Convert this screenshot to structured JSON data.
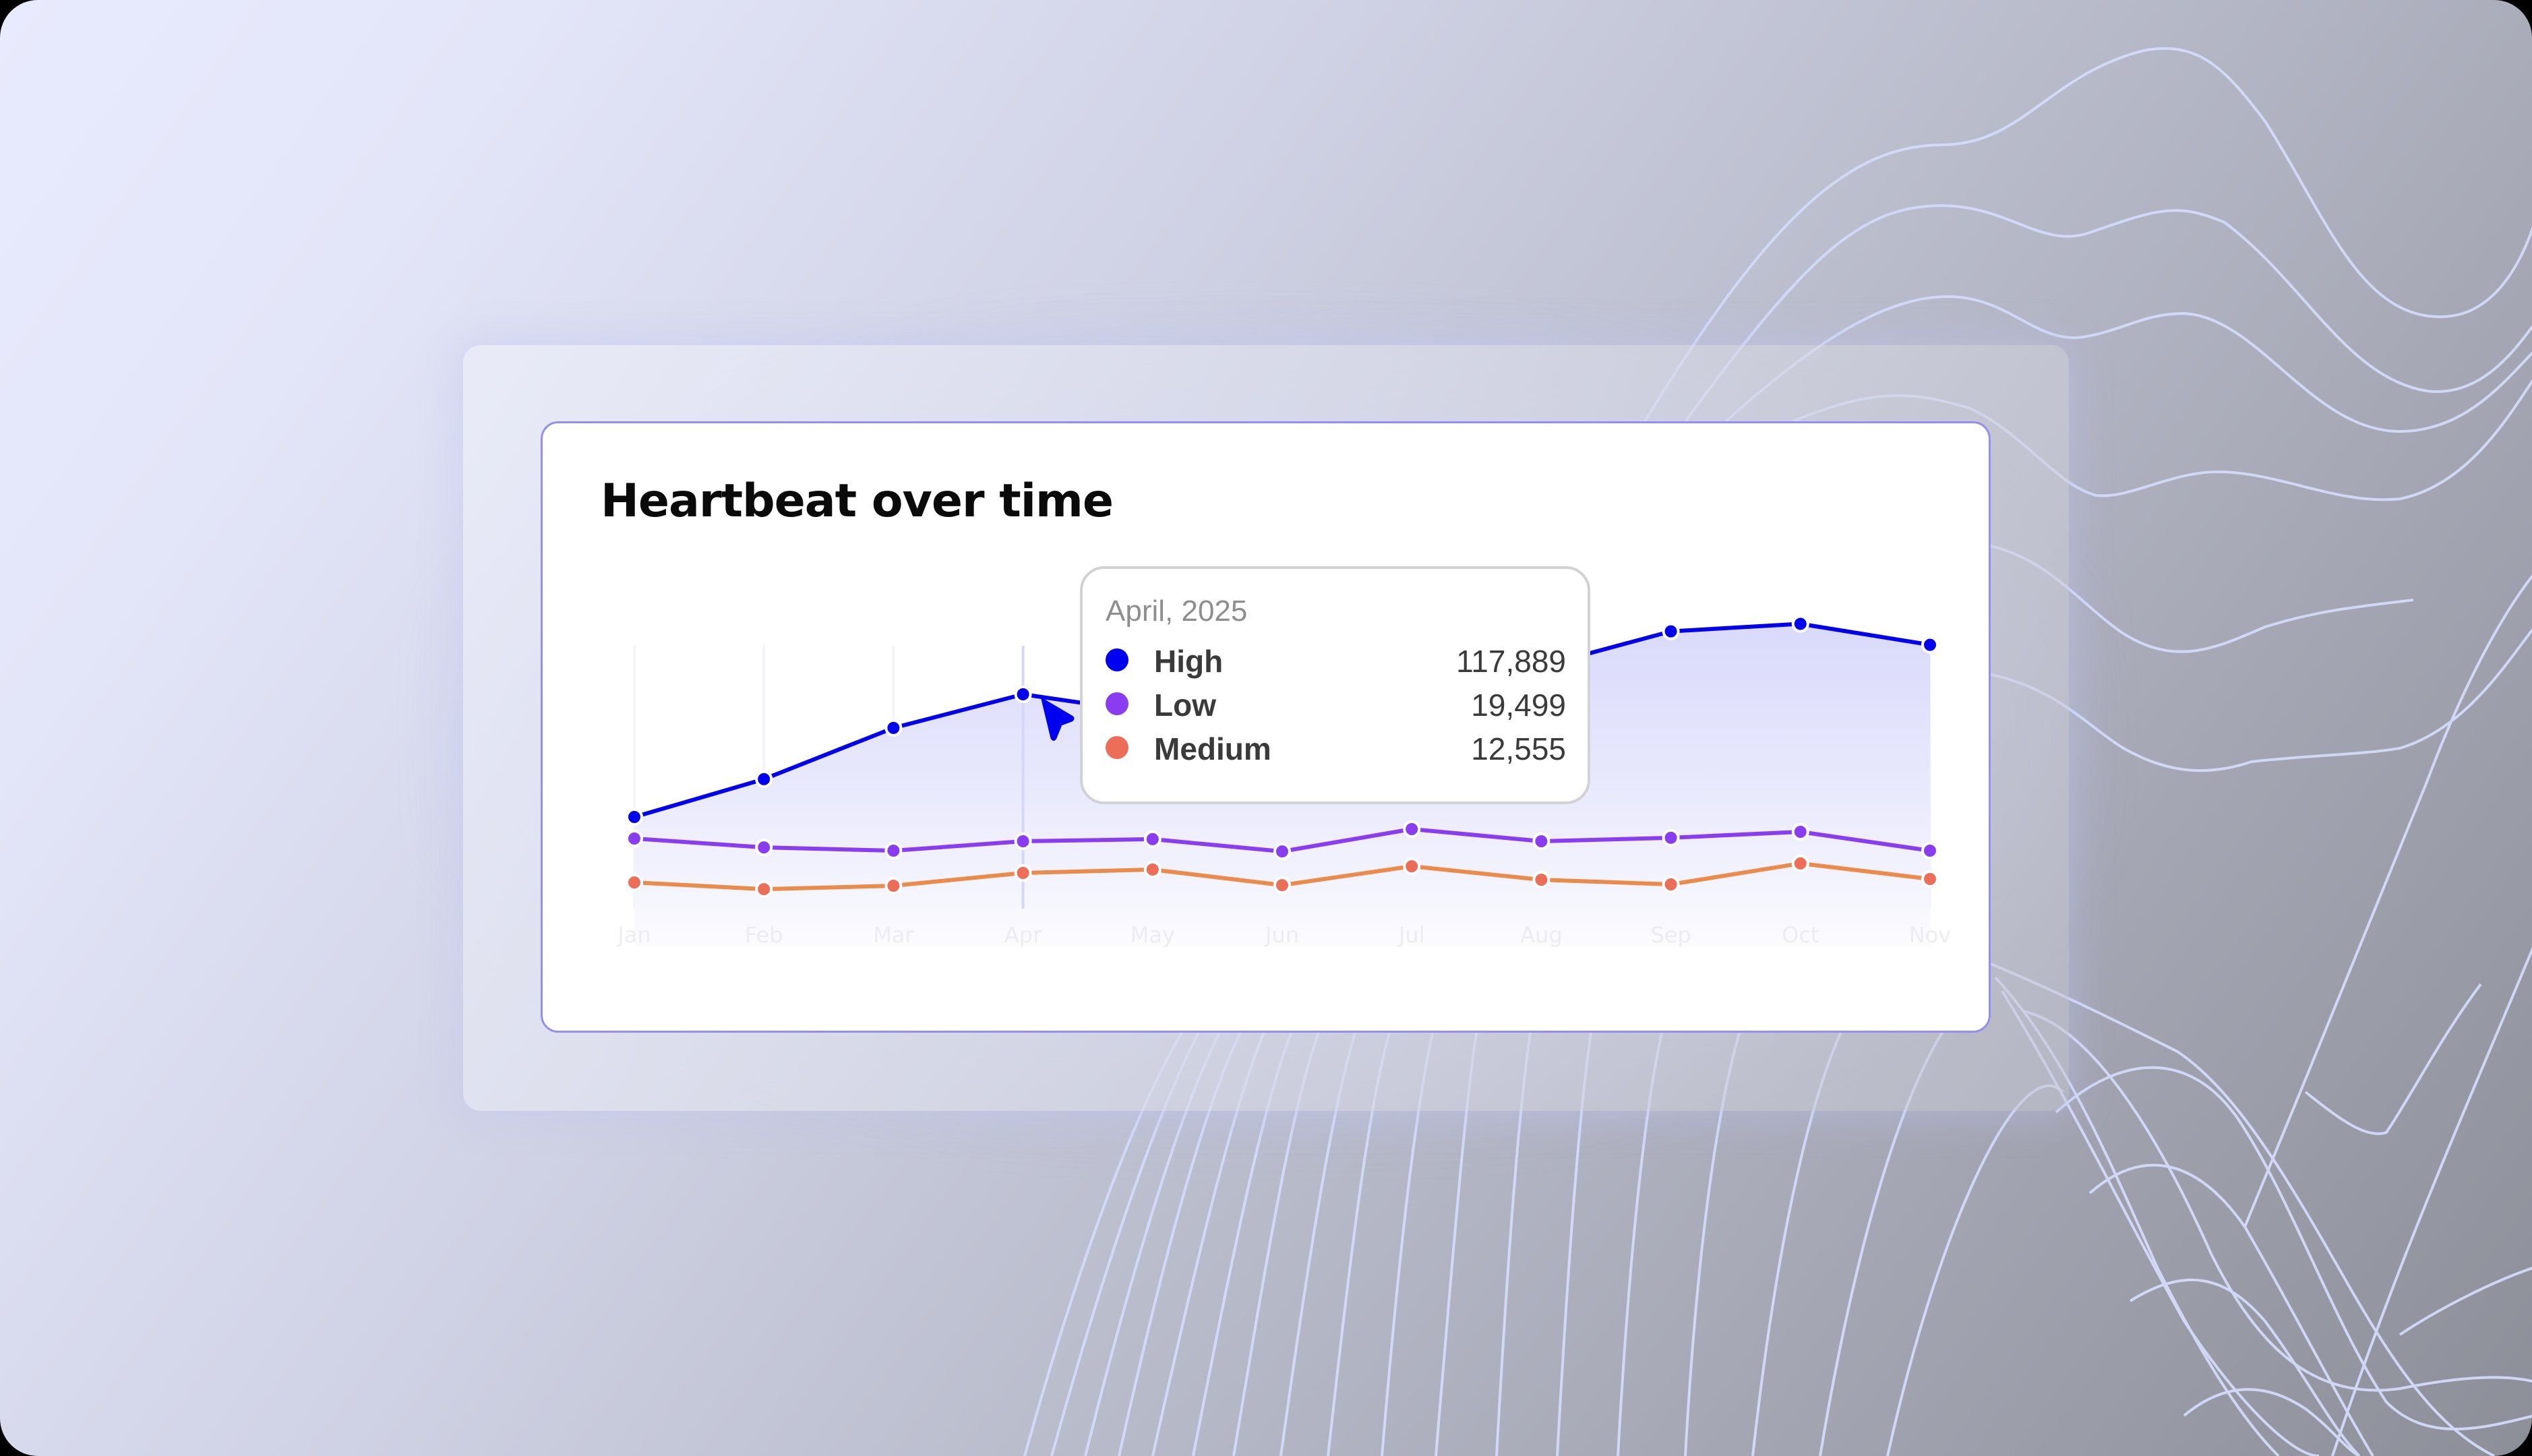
{
  "card": {
    "title": "Heartbeat over time"
  },
  "tooltip": {
    "date": "April, 2025",
    "rows": [
      {
        "label": "High",
        "value": "117,889",
        "color": "#0000f0"
      },
      {
        "label": "Low",
        "value": "19,499",
        "color": "#8a3cf0"
      },
      {
        "label": "Medium",
        "value": "12,555",
        "color": "#ec6e58"
      }
    ]
  },
  "colors": {
    "high": "#0000ee",
    "low": "#8a3cf0",
    "medium_line": "#ec8a4a",
    "medium_dot": "#ec6e58",
    "area_top": "#d9d9fb",
    "card_border": "#928ff0",
    "wave_line": "#d4dbfa"
  },
  "chart_data": {
    "type": "line",
    "title": "Heartbeat over time",
    "xlabel": "",
    "ylabel": "",
    "categories": [
      "Jan",
      "Feb",
      "Mar",
      "Apr",
      "May",
      "Jun",
      "Jul",
      "Aug",
      "Sep",
      "Oct",
      "Nov"
    ],
    "series": [
      {
        "name": "High",
        "color": "#0000ee",
        "area": true,
        "values": [
          35800,
          61100,
          95400,
          117889,
          105300,
          120600,
          129600,
          136600,
          160000,
          165000,
          151000
        ]
      },
      {
        "name": "Low",
        "color": "#8a3cf0",
        "area": false,
        "values": [
          21300,
          15400,
          13200,
          19499,
          20900,
          12700,
          27600,
          19500,
          21800,
          25800,
          13200
        ]
      },
      {
        "name": "Medium",
        "color": "#ec8a4a",
        "area": false,
        "values": [
          6200,
          1700,
          4000,
          12555,
          14800,
          4400,
          17000,
          8000,
          4900,
          18900,
          8500
        ]
      }
    ],
    "highlighted_category": "Apr",
    "tooltip": {
      "title": "April, 2025",
      "High": 117889,
      "Low": 19499,
      "Medium": 12555
    },
    "grid": "vertical-faint",
    "legend": "tooltip",
    "y_axis_visible": false
  }
}
